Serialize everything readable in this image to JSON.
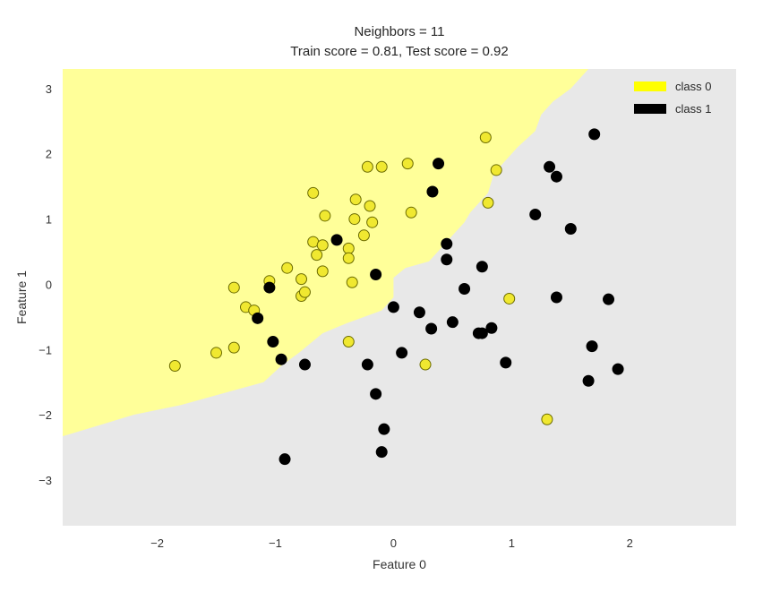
{
  "chart_data": {
    "type": "scatter",
    "title": "Neighbors = 11",
    "subtitle": "Train score = 0.81, Test score = 0.92",
    "xlabel": "Feature 0",
    "ylabel": "Feature 1",
    "xlim": [
      -2.8,
      2.9
    ],
    "ylim": [
      -3.7,
      3.3
    ],
    "xticks": [
      -2,
      -1,
      0,
      1,
      2
    ],
    "yticks": [
      -3,
      -2,
      -1,
      0,
      1,
      2,
      3
    ],
    "grid": false,
    "legend_position": "top-right",
    "colors": {
      "background": "#e8e8e8",
      "region_class_0": "#ffff99",
      "class_0": "#f0e830",
      "class_1": "#000000",
      "marker_edge": "#6b6b00"
    },
    "decision_boundary": [
      [
        -2.8,
        -2.33
      ],
      [
        -2.2,
        -2.0
      ],
      [
        -1.8,
        -1.85
      ],
      [
        -1.4,
        -1.65
      ],
      [
        -1.1,
        -1.5
      ],
      [
        -0.95,
        -1.25
      ],
      [
        -0.8,
        -1.05
      ],
      [
        -0.6,
        -0.75
      ],
      [
        -0.4,
        -0.6
      ],
      [
        -0.25,
        -0.5
      ],
      [
        -0.1,
        -0.4
      ],
      [
        0.0,
        -0.2
      ],
      [
        0.0,
        0.1
      ],
      [
        0.1,
        0.25
      ],
      [
        0.3,
        0.35
      ],
      [
        0.4,
        0.55
      ],
      [
        0.5,
        0.75
      ],
      [
        0.6,
        0.95
      ],
      [
        0.65,
        1.1
      ],
      [
        0.8,
        1.4
      ],
      [
        0.85,
        1.7
      ],
      [
        0.95,
        1.9
      ],
      [
        1.05,
        2.1
      ],
      [
        1.2,
        2.35
      ],
      [
        1.25,
        2.6
      ],
      [
        1.35,
        2.8
      ],
      [
        1.5,
        3.0
      ],
      [
        1.65,
        3.3
      ]
    ],
    "series": [
      {
        "name": "class 0",
        "points": [
          [
            -1.85,
            -1.25
          ],
          [
            -1.5,
            -1.05
          ],
          [
            -1.35,
            -0.97
          ],
          [
            -1.35,
            -0.05
          ],
          [
            -1.25,
            -0.35
          ],
          [
            -1.18,
            -0.4
          ],
          [
            -1.05,
            0.05
          ],
          [
            -0.9,
            0.25
          ],
          [
            -0.78,
            0.08
          ],
          [
            -0.78,
            -0.18
          ],
          [
            -0.75,
            -0.12
          ],
          [
            -0.68,
            1.4
          ],
          [
            -0.68,
            0.65
          ],
          [
            -0.65,
            0.45
          ],
          [
            -0.6,
            0.6
          ],
          [
            -0.6,
            0.2
          ],
          [
            -0.58,
            1.05
          ],
          [
            -0.38,
            0.55
          ],
          [
            -0.38,
            0.4
          ],
          [
            -0.35,
            0.03
          ],
          [
            -0.33,
            1.0
          ],
          [
            -0.32,
            1.3
          ],
          [
            -0.25,
            0.75
          ],
          [
            -0.2,
            1.2
          ],
          [
            -0.18,
            0.95
          ],
          [
            -0.22,
            1.8
          ],
          [
            -0.1,
            1.8
          ],
          [
            -0.38,
            -0.88
          ],
          [
            0.12,
            1.85
          ],
          [
            0.15,
            1.1
          ],
          [
            0.27,
            -1.23
          ],
          [
            0.78,
            2.25
          ],
          [
            0.8,
            1.25
          ],
          [
            0.87,
            1.75
          ],
          [
            0.98,
            -0.22
          ],
          [
            1.3,
            -2.07
          ]
        ]
      },
      {
        "name": "class 1",
        "points": [
          [
            -1.05,
            -0.05
          ],
          [
            -1.15,
            -0.52
          ],
          [
            -1.02,
            -0.88
          ],
          [
            -0.95,
            -1.15
          ],
          [
            -0.75,
            -1.23
          ],
          [
            -0.92,
            -2.68
          ],
          [
            -0.48,
            0.68
          ],
          [
            -0.15,
            0.15
          ],
          [
            -0.22,
            -1.23
          ],
          [
            -0.15,
            -1.68
          ],
          [
            -0.08,
            -2.22
          ],
          [
            -0.1,
            -2.57
          ],
          [
            0.0,
            -0.35
          ],
          [
            0.07,
            -1.05
          ],
          [
            0.22,
            -0.43
          ],
          [
            0.32,
            -0.68
          ],
          [
            0.33,
            1.42
          ],
          [
            0.38,
            1.85
          ],
          [
            0.45,
            0.62
          ],
          [
            0.45,
            0.38
          ],
          [
            0.5,
            -0.58
          ],
          [
            0.6,
            -0.07
          ],
          [
            0.72,
            -0.75
          ],
          [
            0.75,
            -0.75
          ],
          [
            0.75,
            0.27
          ],
          [
            0.83,
            -0.67
          ],
          [
            0.95,
            -1.2
          ],
          [
            1.2,
            1.07
          ],
          [
            1.32,
            1.8
          ],
          [
            1.38,
            1.65
          ],
          [
            1.38,
            -0.2
          ],
          [
            1.5,
            0.85
          ],
          [
            1.7,
            2.3
          ],
          [
            1.68,
            -0.95
          ],
          [
            1.65,
            -1.48
          ],
          [
            1.82,
            -0.23
          ],
          [
            1.9,
            -1.3
          ]
        ]
      }
    ]
  }
}
